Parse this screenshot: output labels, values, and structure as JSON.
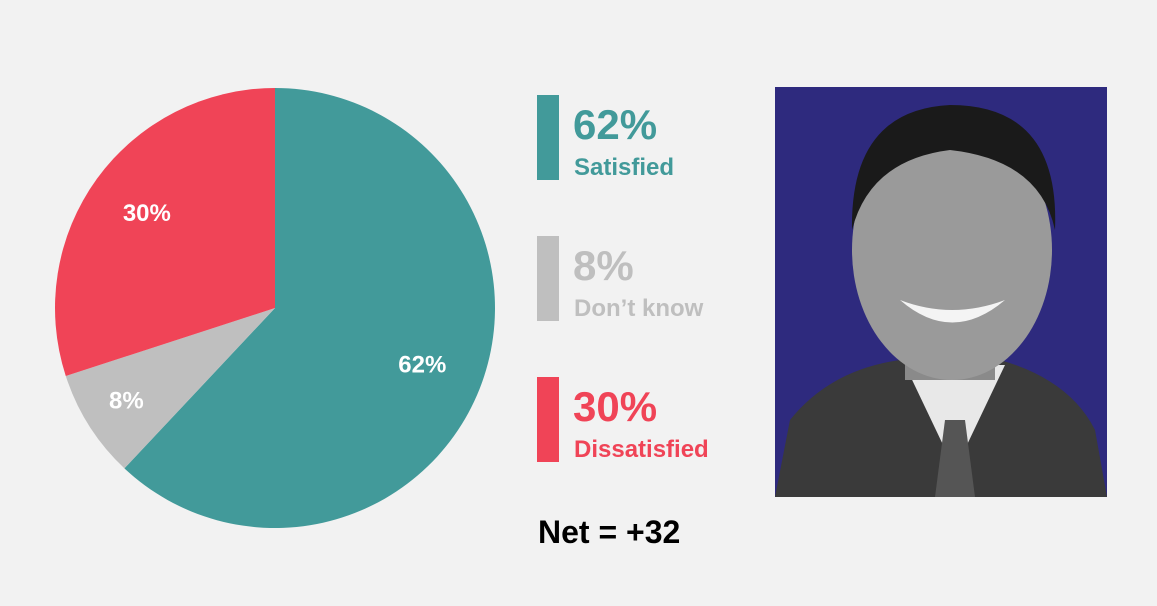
{
  "chart_data": {
    "type": "pie",
    "categories": [
      "Satisfied",
      "Don’t know",
      "Dissatisfied"
    ],
    "values": [
      62,
      8,
      30
    ],
    "value_labels": [
      "62%",
      "8%",
      "30%"
    ],
    "colors": [
      "#429a9a",
      "#bfbfbf",
      "#f04457"
    ],
    "annotation": "Net = +32"
  }
}
